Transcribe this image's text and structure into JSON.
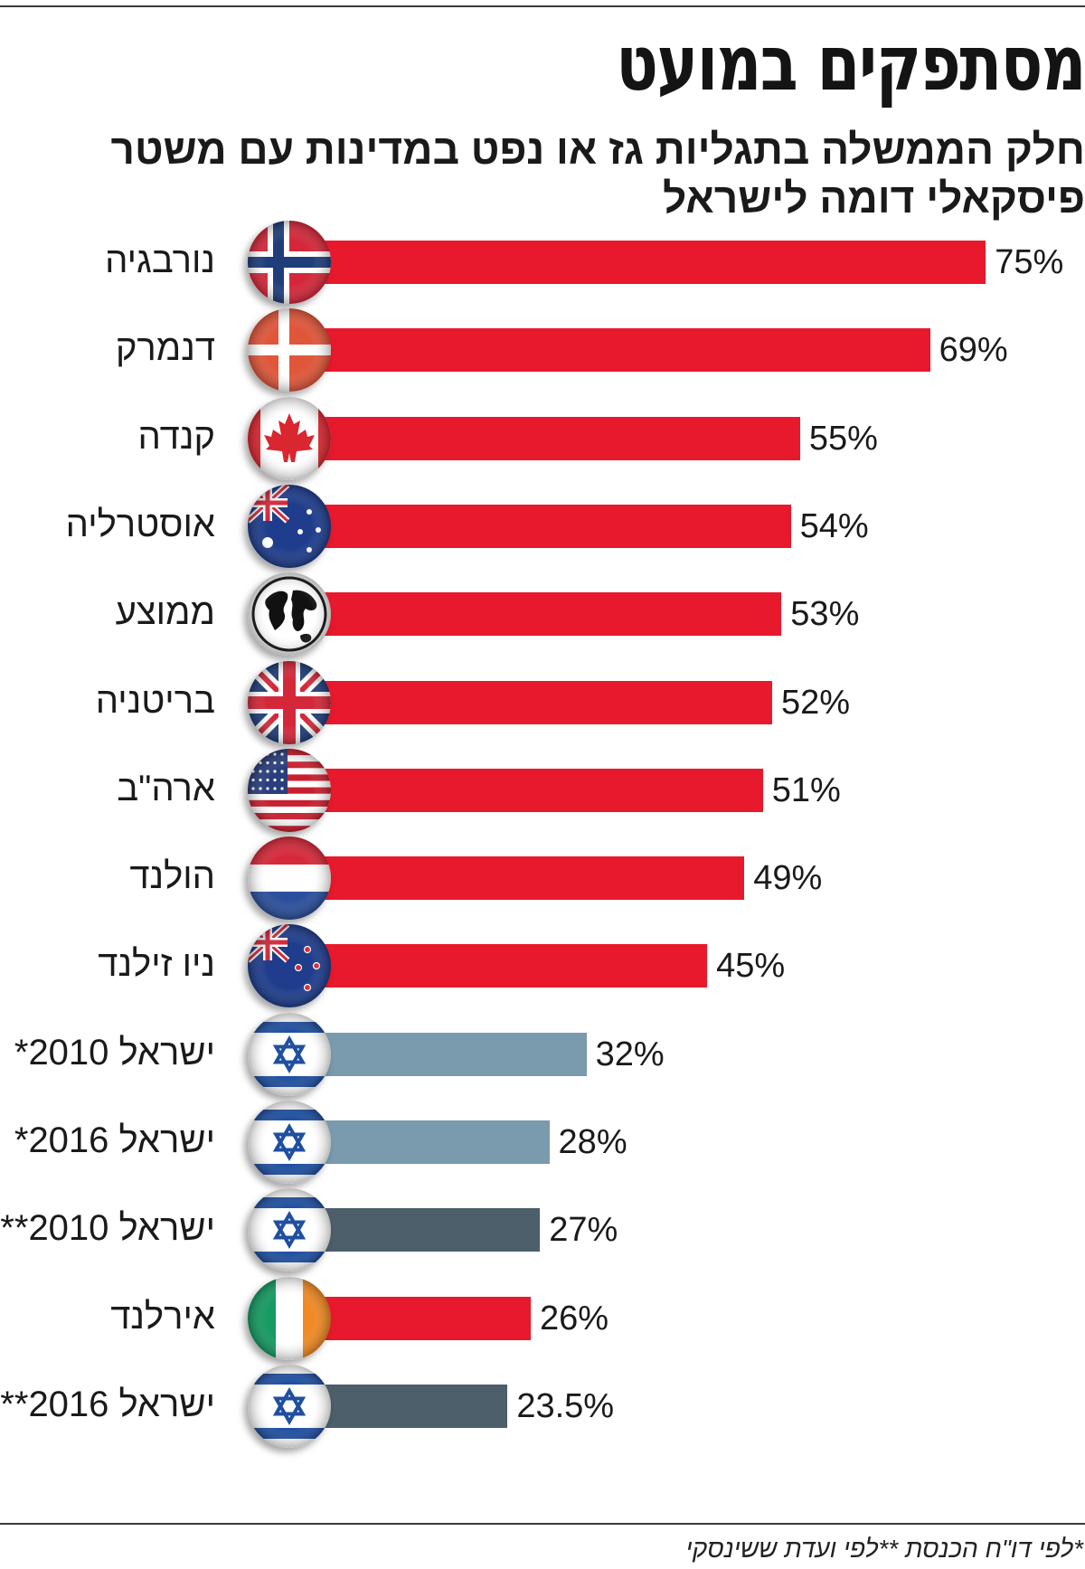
{
  "title": "מסתפקים במועט",
  "subtitle_line1": "חלק הממשלה בתגליות גז או נפט במדינות עם משטר",
  "subtitle_line2": "פיסקאלי דומה לישראל",
  "footnote": "*לפי דו\"ח הכנסת **לפי ועדת ששינסקי",
  "colors": {
    "red": "#e8192c",
    "light_blue": "#7a9aae",
    "dark_slate": "#4c5f6b"
  },
  "chart_data": {
    "type": "bar",
    "orientation": "horizontal",
    "unit": "%",
    "xlim": [
      0,
      80
    ],
    "grid": false,
    "categories": [
      "נורבגיה",
      "דנמרק",
      "קנדה",
      "אוסטרליה",
      "ממוצע",
      "בריטניה",
      "ארה\"ב",
      "הולנד",
      "ניו זילנד",
      "ישראל 2010*",
      "ישראל 2016*",
      "ישראל 2010**",
      "אירלנד",
      "ישראל 2016**"
    ],
    "values": [
      75,
      69,
      55,
      54,
      53,
      52,
      51,
      49,
      45,
      32,
      28,
      27,
      26,
      23.5
    ],
    "value_labels": [
      "75%",
      "69%",
      "55%",
      "54%",
      "53%",
      "52%",
      "51%",
      "49%",
      "45%",
      "32%",
      "28%",
      "27%",
      "26%",
      "23.5%"
    ],
    "bar_colors": [
      "#e8192c",
      "#e8192c",
      "#e8192c",
      "#e8192c",
      "#e8192c",
      "#e8192c",
      "#e8192c",
      "#e8192c",
      "#e8192c",
      "#7a9aae",
      "#7a9aae",
      "#4c5f6b",
      "#e8192c",
      "#4c5f6b"
    ],
    "icons": [
      "norway-flag-icon",
      "denmark-flag-icon",
      "canada-flag-icon",
      "australia-flag-icon",
      "globe-icon",
      "uk-flag-icon",
      "usa-flag-icon",
      "netherlands-flag-icon",
      "new-zealand-flag-icon",
      "israel-flag-icon",
      "israel-flag-icon",
      "israel-flag-icon",
      "ireland-flag-icon",
      "israel-flag-icon"
    ]
  }
}
